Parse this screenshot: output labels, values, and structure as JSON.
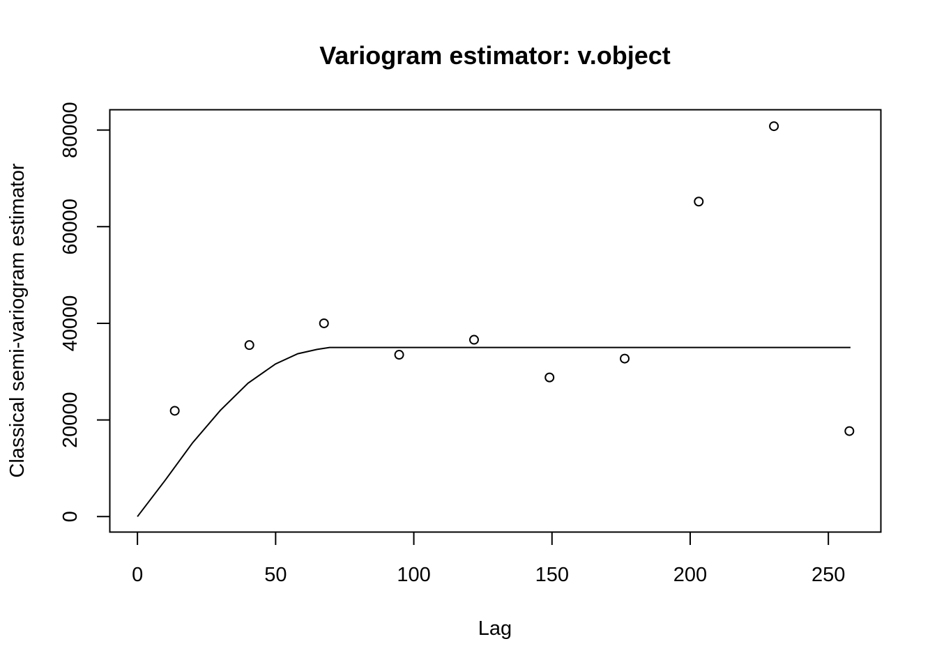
{
  "chart_data": {
    "type": "scatter",
    "title": "Variogram estimator: v.object",
    "xlabel": "Lag",
    "ylabel": "Classical semi-variogram estimator",
    "xlim": [
      -10,
      269
    ],
    "ylim": [
      -3200,
      84200
    ],
    "x_ticks": [
      0,
      50,
      100,
      150,
      200,
      250
    ],
    "y_ticks": [
      0,
      20000,
      40000,
      60000,
      80000
    ],
    "grid": false,
    "points": {
      "x": [
        13.5,
        40.5,
        67.5,
        94.7,
        121.8,
        149.1,
        176.3,
        203.1,
        230.3,
        257.6
      ],
      "y": [
        21900,
        35500,
        40000,
        33500,
        36600,
        28800,
        32700,
        65200,
        80800,
        17700
      ]
    },
    "fitted_line": {
      "x": [
        0,
        10,
        20,
        30,
        40,
        50,
        58,
        65,
        69.5,
        100,
        150,
        200,
        258
      ],
      "y": [
        0,
        7500,
        15300,
        22000,
        27600,
        31600,
        33700,
        34600,
        35000,
        35000,
        35000,
        35000,
        35000
      ]
    }
  }
}
